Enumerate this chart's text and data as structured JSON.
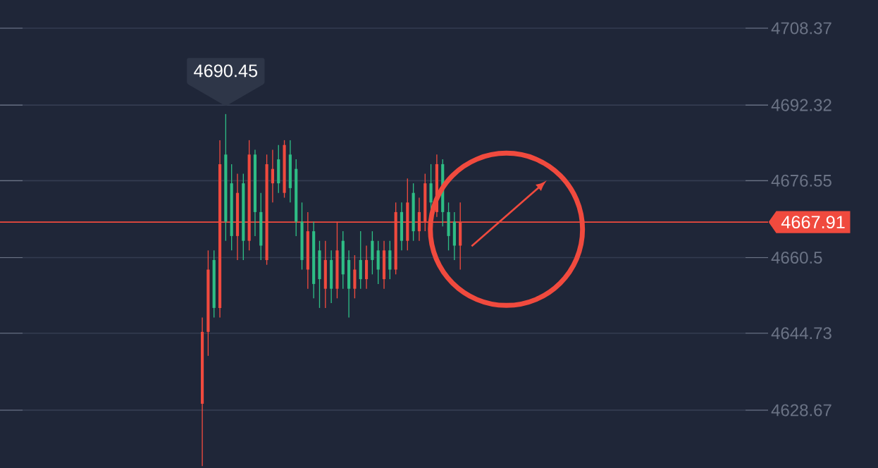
{
  "chart_data": {
    "type": "candlestick",
    "categories": [
      null,
      null,
      null,
      null,
      null,
      null,
      null,
      null,
      null,
      null,
      null,
      null,
      null,
      null,
      null,
      null,
      null,
      null,
      null,
      null,
      null,
      null,
      null,
      null,
      null,
      null,
      null,
      null,
      null,
      null,
      null,
      null,
      null,
      null,
      null,
      null,
      null,
      null,
      null,
      null,
      null,
      null,
      null,
      null,
      null,
      null,
      null,
      null,
      null,
      null,
      null,
      null,
      null,
      null,
      null,
      null,
      null,
      null,
      null,
      null,
      null,
      null,
      null,
      null,
      null,
      null,
      null,
      null,
      null,
      null,
      null,
      null,
      null,
      null,
      null,
      null,
      null,
      null,
      null,
      null,
      null,
      null,
      null,
      null,
      null,
      null,
      null,
      null,
      null,
      null,
      null,
      null,
      null,
      null,
      null,
      null,
      null,
      null,
      null,
      null,
      null,
      null,
      null,
      null,
      null,
      null,
      null,
      null,
      null,
      null,
      null,
      null,
      null,
      null,
      null,
      null,
      null,
      null,
      null,
      null,
      null,
      null,
      null,
      null,
      null,
      null,
      null,
      null,
      null,
      null,
      null
    ],
    "ohlc": [
      null,
      null,
      null,
      null,
      null,
      null,
      null,
      null,
      null,
      null,
      null,
      null,
      null,
      null,
      null,
      null,
      null,
      null,
      null,
      null,
      null,
      null,
      null,
      null,
      null,
      null,
      null,
      null,
      null,
      null,
      null,
      null,
      null,
      null,
      [
        4630,
        4648,
        4617,
        4645
      ],
      [
        4645,
        4662,
        4640,
        4658
      ],
      [
        4660,
        4662,
        4648,
        4650
      ],
      [
        4650,
        4685,
        4648,
        4680
      ],
      [
        4682,
        4690.45,
        4664,
        4668
      ],
      [
        4676,
        4680,
        4662,
        4665
      ],
      [
        4665,
        4678,
        4660,
        4674
      ],
      [
        4676,
        4678,
        4660,
        4664
      ],
      [
        4664,
        4685,
        4662,
        4682
      ],
      [
        4682,
        4683,
        4665,
        4670
      ],
      [
        4670,
        4674,
        4660,
        4663
      ],
      [
        4660,
        4682,
        4659,
        4680
      ],
      [
        4676,
        4683,
        4672,
        4679
      ],
      [
        4681,
        4684,
        4674,
        4676
      ],
      [
        4674,
        4685,
        4673,
        4684
      ],
      [
        4682,
        4685,
        4672,
        4675
      ],
      [
        4679,
        4681,
        4665,
        4668
      ],
      [
        4668,
        4672,
        4658,
        4660
      ],
      [
        4658,
        4670,
        4654,
        4666
      ],
      [
        4666,
        4668,
        4652,
        4655
      ],
      [
        4662,
        4664,
        4650,
        4656
      ],
      [
        4654,
        4664,
        4650,
        4660
      ],
      [
        4660,
        4662,
        4651,
        4654
      ],
      [
        4654,
        4668,
        4652,
        4662
      ],
      [
        4664,
        4666,
        4654,
        4657
      ],
      [
        4660,
        4662,
        4648,
        4654
      ],
      [
        4654,
        4661,
        4652,
        4658
      ],
      [
        4660,
        4666,
        4654,
        4656
      ],
      [
        4656,
        4663,
        4654,
        4660
      ],
      [
        4664,
        4666,
        4657,
        4660
      ],
      [
        4662,
        4664,
        4655,
        4658
      ],
      [
        4656,
        4664,
        4654,
        4662
      ],
      [
        4662,
        4664,
        4656,
        4658
      ],
      [
        4658,
        4672,
        4657,
        4670
      ],
      [
        4670,
        4672,
        4662,
        4664
      ],
      [
        4664,
        4677,
        4662,
        4672
      ],
      [
        4674,
        4676,
        4664,
        4666
      ],
      [
        4666,
        4673,
        4664,
        4670
      ],
      [
        4668,
        4678,
        4666,
        4676
      ],
      [
        4676,
        4680,
        4670,
        4672
      ],
      [
        4670,
        4682,
        4669,
        4680
      ],
      [
        4680,
        4681,
        4667,
        4670
      ],
      [
        4670,
        4672,
        4662,
        4665
      ],
      [
        4668,
        4670,
        4660,
        4663
      ],
      [
        4663,
        4672,
        4658,
        4667.91
      ],
      null,
      null,
      null,
      null,
      null,
      null,
      null,
      null,
      null,
      null,
      null,
      null,
      null,
      null,
      null,
      null,
      null,
      null,
      null,
      null,
      null,
      null,
      null,
      null,
      null,
      null,
      null,
      null,
      null,
      null,
      null,
      null,
      null,
      null,
      null,
      null,
      null,
      null,
      null,
      null,
      null,
      null,
      null,
      null,
      null,
      null,
      null,
      null,
      null,
      null,
      null,
      null
    ],
    "colors": [
      null,
      null,
      null,
      null,
      null,
      null,
      null,
      null,
      null,
      null,
      null,
      null,
      null,
      null,
      null,
      null,
      null,
      null,
      null,
      null,
      null,
      null,
      null,
      null,
      null,
      null,
      null,
      null,
      null,
      null,
      null,
      null,
      null,
      null,
      "#f04a3e",
      "#f04a3e",
      "#2ebd85",
      "#f04a3e",
      "#2ebd85",
      "#2ebd85",
      "#f04a3e",
      "#2ebd85",
      "#f04a3e",
      "#2ebd85",
      "#2ebd85",
      "#f04a3e",
      "#f04a3e",
      "#2ebd85",
      "#f04a3e",
      "#2ebd85",
      "#2ebd85",
      "#2ebd85",
      "#f04a3e",
      "#2ebd85",
      "#2ebd85",
      "#f04a3e",
      "#2ebd85",
      "#f04a3e",
      "#2ebd85",
      "#2ebd85",
      "#f04a3e",
      "#2ebd85",
      "#f04a3e",
      "#2ebd85",
      "#2ebd85",
      "#f04a3e",
      "#2ebd85",
      "#f04a3e",
      "#2ebd85",
      "#f04a3e",
      "#2ebd85",
      "#f04a3e",
      "#f04a3e",
      "#2ebd85",
      "#f04a3e",
      "#2ebd85",
      "#2ebd85",
      "#2ebd85",
      "#f04a3e",
      null,
      null,
      null,
      null,
      null,
      null,
      null,
      null,
      null,
      null,
      null,
      null,
      null,
      null,
      null,
      null,
      null,
      null,
      null,
      null,
      null,
      null,
      null,
      null,
      null,
      null,
      null,
      null,
      null,
      null,
      null,
      null,
      null,
      null,
      null,
      null,
      null,
      null,
      null,
      null,
      null,
      null,
      null,
      null,
      null,
      null,
      null,
      null,
      null,
      null,
      null,
      null
    ],
    "ylim": [
      4616.6,
      4714.25
    ],
    "yticks": [
      4628.67,
      4644.73,
      4660.5,
      4676.55,
      4692.32,
      4708.37
    ],
    "tick_labels": "y",
    "grid": "y",
    "ref_lines": [
      {
        "axis": "y",
        "value": 4667.91,
        "label": "4667.91",
        "color": "#f04a3e"
      }
    ],
    "annotations": [
      "4690.45"
    ]
  }
}
